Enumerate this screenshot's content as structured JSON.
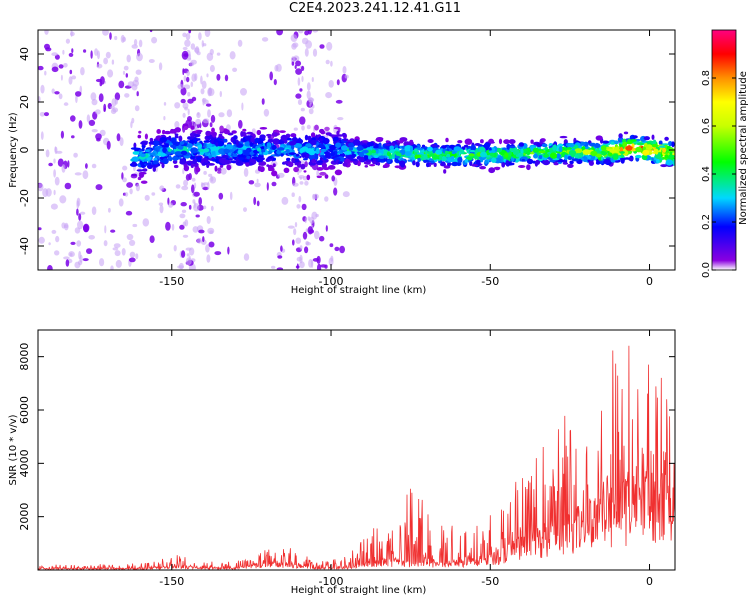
{
  "figure": {
    "title": "C2E4.2023.241.12.41.G11"
  },
  "chart_data": [
    {
      "type": "heatmap",
      "xlabel": "Height of straight line (km)",
      "ylabel": "Frequency (Hz)",
      "xlim": [
        -192,
        8
      ],
      "ylim": [
        -50,
        50
      ],
      "xticks": [
        -150,
        -100,
        -50,
        0
      ],
      "yticks": [
        -40,
        -20,
        0,
        20,
        40
      ],
      "grid": false,
      "colorbar": {
        "label": "Normalized spectral amplitude",
        "range": [
          0.0,
          1.0
        ],
        "ticks": [
          0.0,
          0.2,
          0.4,
          0.6,
          0.8
        ],
        "colormap": "rainbow"
      },
      "band_center_hz": [
        {
          "x": -192,
          "f": -3
        },
        {
          "x": -160,
          "f": -3
        },
        {
          "x": -150,
          "f": 0
        },
        {
          "x": -130,
          "f": 0
        },
        {
          "x": -100,
          "f": 0
        },
        {
          "x": -75,
          "f": -2
        },
        {
          "x": -50,
          "f": -2
        },
        {
          "x": -30,
          "f": -1
        },
        {
          "x": -15,
          "f": -1
        },
        {
          "x": -5,
          "f": 1
        },
        {
          "x": 0,
          "f": 0
        },
        {
          "x": 8,
          "f": -2
        }
      ],
      "peak_amplitude": [
        {
          "x": -160,
          "a": 0.35
        },
        {
          "x": -100,
          "a": 0.3
        },
        {
          "x": -75,
          "a": 0.5
        },
        {
          "x": -50,
          "a": 0.5
        },
        {
          "x": -30,
          "a": 0.55
        },
        {
          "x": -15,
          "a": 0.65
        },
        {
          "x": -8,
          "a": 0.8
        },
        {
          "x": 0,
          "a": 0.9
        },
        {
          "x": 8,
          "a": 0.75
        }
      ],
      "scatter_noise_extent_km": [
        -192,
        -95
      ]
    },
    {
      "type": "line",
      "xlabel": "Height of straight line (km)",
      "ylabel": "SNR (10 * v/v)",
      "xlim": [
        -192,
        8
      ],
      "ylim": [
        0,
        9000
      ],
      "xticks": [
        -150,
        -100,
        -50,
        0
      ],
      "yticks": [
        2000,
        4000,
        6000,
        8000
      ],
      "grid": false,
      "color": "#f03030",
      "envelope": [
        {
          "x": -192,
          "base": 50,
          "peak": 200
        },
        {
          "x": -160,
          "base": 60,
          "peak": 250
        },
        {
          "x": -148,
          "base": 150,
          "peak": 650
        },
        {
          "x": -140,
          "base": 80,
          "peak": 350
        },
        {
          "x": -130,
          "base": 70,
          "peak": 300
        },
        {
          "x": -122,
          "base": 250,
          "peak": 1050
        },
        {
          "x": -112,
          "base": 250,
          "peak": 950
        },
        {
          "x": -105,
          "base": 60,
          "peak": 300
        },
        {
          "x": -95,
          "base": 120,
          "peak": 650
        },
        {
          "x": -88,
          "base": 300,
          "peak": 1600
        },
        {
          "x": -80,
          "base": 400,
          "peak": 2200
        },
        {
          "x": -75,
          "base": 300,
          "peak": 3300
        },
        {
          "x": -65,
          "base": 300,
          "peak": 1800
        },
        {
          "x": -55,
          "base": 400,
          "peak": 1700
        },
        {
          "x": -48,
          "base": 600,
          "peak": 2400
        },
        {
          "x": -40,
          "base": 1100,
          "peak": 3900
        },
        {
          "x": -30,
          "base": 1600,
          "peak": 5500
        },
        {
          "x": -22,
          "base": 2000,
          "peak": 6200
        },
        {
          "x": -15,
          "base": 2400,
          "peak": 7200
        },
        {
          "x": -10,
          "base": 2800,
          "peak": 9000
        },
        {
          "x": -5,
          "base": 3000,
          "peak": 8000
        },
        {
          "x": 0,
          "base": 3200,
          "peak": 8900
        },
        {
          "x": 5,
          "base": 3000,
          "peak": 8600
        },
        {
          "x": 8,
          "base": 2500,
          "peak": 7000
        }
      ]
    }
  ]
}
